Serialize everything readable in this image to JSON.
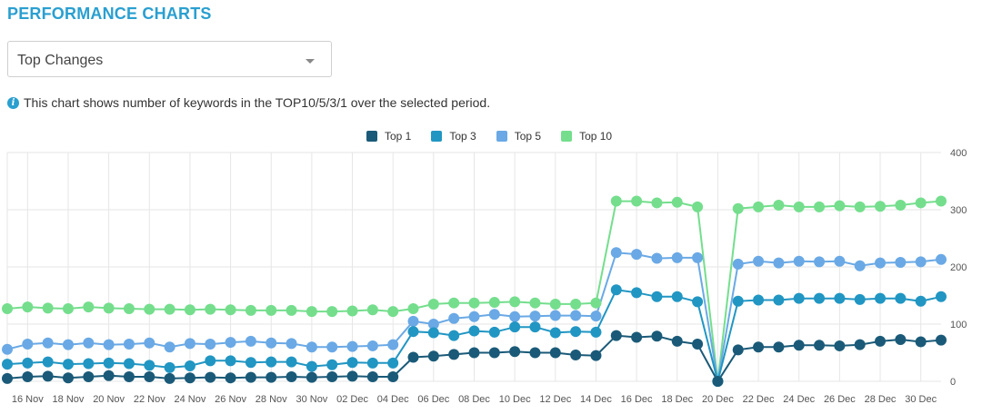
{
  "header": {
    "title": "PERFORMANCE CHARTS"
  },
  "selector": {
    "value": "Top Changes"
  },
  "info": {
    "text": "This chart shows number of keywords in the TOP10/5/3/1 over the selected period."
  },
  "colors": {
    "top1": "#1a5a78",
    "top3": "#2196c3",
    "top5": "#6aa9e5",
    "top10": "#74de8d",
    "grid": "#e6e6e6",
    "axis_text": "#555555"
  },
  "chart_data": {
    "type": "line",
    "x": [
      "15 Nov",
      "16 Nov",
      "17 Nov",
      "18 Nov",
      "19 Nov",
      "20 Nov",
      "21 Nov",
      "22 Nov",
      "23 Nov",
      "24 Nov",
      "25 Nov",
      "26 Nov",
      "27 Nov",
      "28 Nov",
      "29 Nov",
      "30 Nov",
      "01 Dec",
      "02 Dec",
      "03 Dec",
      "04 Dec",
      "05 Dec",
      "06 Dec",
      "07 Dec",
      "08 Dec",
      "09 Dec",
      "10 Dec",
      "11 Dec",
      "12 Dec",
      "13 Dec",
      "14 Dec",
      "15 Dec",
      "16 Dec",
      "17 Dec",
      "18 Dec",
      "19 Dec",
      "20 Dec",
      "21 Dec",
      "22 Dec",
      "23 Dec",
      "24 Dec",
      "25 Dec",
      "26 Dec",
      "27 Dec",
      "28 Dec",
      "29 Dec",
      "30 Dec",
      "31 Dec"
    ],
    "x_tick_labels": [
      "16 Nov",
      "18 Nov",
      "20 Nov",
      "22 Nov",
      "24 Nov",
      "26 Nov",
      "28 Nov",
      "30 Nov",
      "02 Dec",
      "04 Dec",
      "06 Dec",
      "08 Dec",
      "10 Dec",
      "12 Dec",
      "14 Dec",
      "16 Dec",
      "18 Dec",
      "20 Dec",
      "22 Dec",
      "24 Dec",
      "26 Dec",
      "28 Dec",
      "30 Dec"
    ],
    "y_ticks": [
      0,
      100,
      200,
      300,
      400
    ],
    "ylim": [
      0,
      400
    ],
    "y_axis_side": "right",
    "grid": true,
    "legend_position": "top-center",
    "series": [
      {
        "key": "top1",
        "name": "Top 1",
        "values": [
          5,
          8,
          9,
          6,
          8,
          10,
          8,
          8,
          5,
          6,
          7,
          6,
          7,
          7,
          8,
          7,
          8,
          9,
          8,
          8,
          42,
          44,
          47,
          50,
          50,
          52,
          50,
          50,
          46,
          45,
          80,
          77,
          79,
          70,
          65,
          0,
          55,
          60,
          60,
          63,
          63,
          62,
          64,
          70,
          73,
          69,
          72
        ]
      },
      {
        "key": "top3",
        "name": "Top 3",
        "values": [
          30,
          32,
          34,
          30,
          31,
          32,
          31,
          28,
          24,
          27,
          36,
          36,
          33,
          34,
          34,
          26,
          29,
          33,
          32,
          32,
          87,
          85,
          80,
          88,
          86,
          95,
          95,
          85,
          87,
          86,
          160,
          155,
          148,
          148,
          139,
          0,
          140,
          142,
          142,
          145,
          145,
          145,
          143,
          145,
          145,
          140,
          148
        ]
      },
      {
        "key": "top5",
        "name": "Top 5",
        "values": [
          56,
          65,
          67,
          64,
          67,
          64,
          65,
          67,
          60,
          66,
          65,
          68,
          70,
          67,
          66,
          60,
          60,
          61,
          62,
          64,
          105,
          100,
          110,
          113,
          117,
          113,
          114,
          115,
          115,
          114,
          225,
          222,
          215,
          216,
          216,
          0,
          205,
          210,
          207,
          210,
          209,
          210,
          202,
          207,
          208,
          209,
          213
        ]
      },
      {
        "key": "top10",
        "name": "Top 10",
        "values": [
          127,
          130,
          128,
          127,
          130,
          128,
          127,
          126,
          126,
          125,
          126,
          125,
          124,
          124,
          124,
          122,
          122,
          123,
          125,
          122,
          127,
          135,
          137,
          137,
          138,
          139,
          137,
          135,
          135,
          137,
          315,
          315,
          312,
          313,
          305,
          0,
          302,
          305,
          308,
          305,
          305,
          307,
          305,
          306,
          308,
          312,
          315
        ]
      }
    ]
  }
}
